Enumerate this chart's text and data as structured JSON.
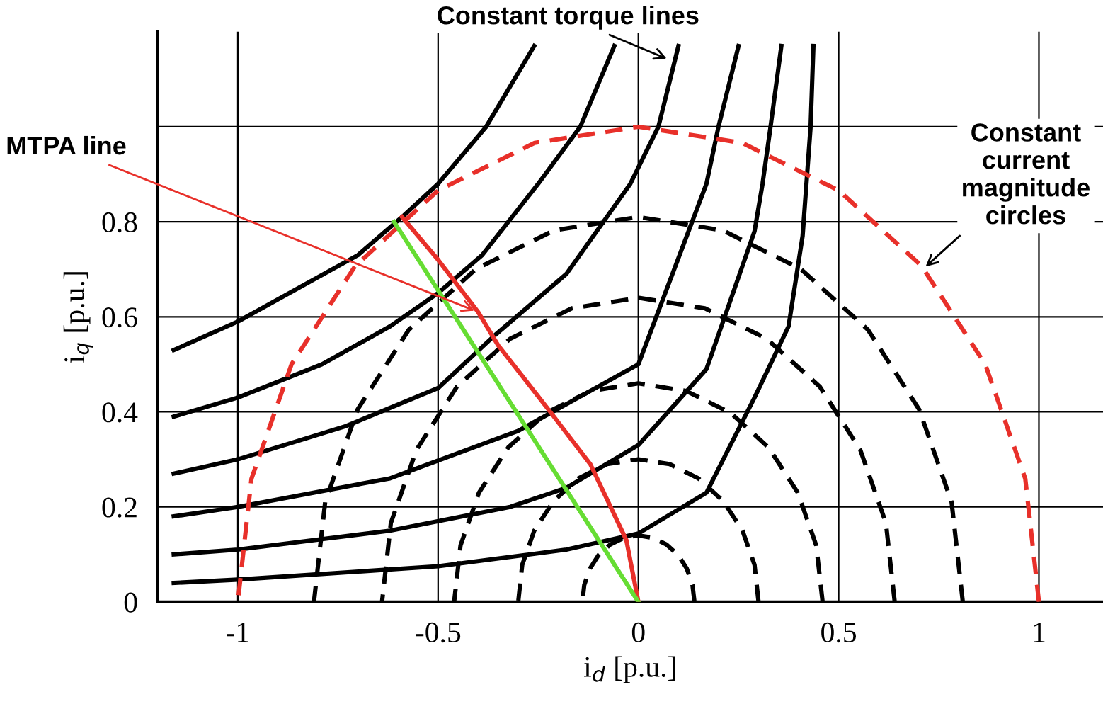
{
  "chart_data": {
    "type": "line",
    "xlabel": "i$_{d}$ [p.u.]",
    "ylabel": "i$_{q}$ [p.u.]",
    "xlim": [
      -1.2,
      1.16
    ],
    "ylim": [
      0,
      1.2
    ],
    "xticks": [
      -1,
      -0.5,
      0,
      0.5,
      1
    ],
    "yticks": [
      0,
      0.2,
      0.4,
      0.6,
      0.8,
      {
        "value": 1,
        "label": null
      }
    ],
    "grid": true,
    "marker": "none",
    "annotations": [
      {
        "text": "Constant torque lines",
        "x": 0.08,
        "y": 1.14
      },
      {
        "text": "MTPA line",
        "x": -0.4,
        "y": 0.61
      },
      {
        "text": "Constant current magnitude circles",
        "x": 0.71,
        "y": 0.7
      }
    ],
    "series": [
      {
        "color": "#000000",
        "line_style": "solid",
        "x": [
          -1.16,
          -1,
          -0.7,
          -0.59,
          -0.5,
          -0.38,
          -0.26
        ],
        "values": [
          0.53,
          0.59,
          0.73,
          0.81,
          0.88,
          1.0,
          1.17
        ]
      },
      {
        "color": "#000000",
        "line_style": "solid",
        "x": [
          -1.16,
          -1,
          -0.79,
          -0.62,
          -0.5,
          -0.39,
          -0.25,
          -0.145,
          -0.06
        ],
        "values": [
          0.39,
          0.43,
          0.5,
          0.58,
          0.65,
          0.73,
          0.88,
          1.0,
          1.17
        ]
      },
      {
        "color": "#000000",
        "line_style": "solid",
        "x": [
          -1.16,
          -1,
          -0.73,
          -0.5,
          -0.36,
          -0.18,
          -0.02,
          0.05,
          0.1
        ],
        "values": [
          0.27,
          0.3,
          0.37,
          0.45,
          0.56,
          0.69,
          0.88,
          1.0,
          1.17
        ]
      },
      {
        "color": "#000000",
        "line_style": "solid",
        "x": [
          -1.16,
          -1,
          -0.62,
          -0.3,
          0,
          0.17,
          0.2,
          0.25
        ],
        "values": [
          0.18,
          0.2,
          0.26,
          0.36,
          0.5,
          0.88,
          1.0,
          1.17
        ]
      },
      {
        "color": "#000000",
        "line_style": "solid",
        "x": [
          -1.16,
          -1,
          -0.62,
          -0.32,
          -0.18,
          0,
          0.17,
          0.29,
          0.31,
          0.33,
          0.357
        ],
        "values": [
          0.1,
          0.11,
          0.15,
          0.2,
          0.24,
          0.33,
          0.49,
          0.78,
          0.88,
          1.0,
          1.17
        ]
      },
      {
        "color": "#000000",
        "line_style": "solid",
        "x": [
          -1.16,
          -1,
          -0.5,
          -0.18,
          0,
          0.17,
          0.29,
          0.375,
          0.41,
          0.43,
          0.437
        ],
        "values": [
          0.04,
          0.047,
          0.075,
          0.11,
          0.144,
          0.23,
          0.43,
          0.58,
          0.77,
          1.0,
          1.17
        ]
      },
      {
        "color": "#000000",
        "line_style": "dashed",
        "x": [
          0.14,
          0.135,
          0.121,
          0.099,
          0.07,
          0.036,
          0,
          -0.036,
          -0.07,
          -0.099,
          -0.121,
          -0.135,
          -0.14
        ],
        "values": [
          0,
          0.036,
          0.07,
          0.099,
          0.121,
          0.135,
          0.14,
          0.135,
          0.121,
          0.099,
          0.07,
          0.036,
          0
        ]
      },
      {
        "color": "#000000",
        "line_style": "dashed",
        "x": [
          0.3,
          0.29,
          0.26,
          0.212,
          0.15,
          0.078,
          0,
          -0.078,
          -0.15,
          -0.212,
          -0.26,
          -0.29,
          -0.3
        ],
        "values": [
          0,
          0.078,
          0.15,
          0.212,
          0.26,
          0.29,
          0.3,
          0.29,
          0.26,
          0.212,
          0.15,
          0.078,
          0
        ]
      },
      {
        "color": "#000000",
        "line_style": "dashed",
        "x": [
          0.46,
          0.444,
          0.398,
          0.325,
          0.23,
          0.119,
          0,
          -0.119,
          -0.23,
          -0.325,
          -0.398,
          -0.444,
          -0.46
        ],
        "values": [
          0,
          0.119,
          0.23,
          0.325,
          0.398,
          0.444,
          0.46,
          0.444,
          0.398,
          0.325,
          0.23,
          0.119,
          0
        ]
      },
      {
        "color": "#000000",
        "line_style": "dashed",
        "x": [
          0.64,
          0.618,
          0.554,
          0.453,
          0.32,
          0.166,
          0,
          -0.166,
          -0.32,
          -0.453,
          -0.554,
          -0.618,
          -0.64
        ],
        "values": [
          0,
          0.166,
          0.32,
          0.453,
          0.554,
          0.618,
          0.64,
          0.618,
          0.554,
          0.453,
          0.32,
          0.166,
          0
        ]
      },
      {
        "color": "#000000",
        "line_style": "dashed",
        "x": [
          0.81,
          0.782,
          0.701,
          0.573,
          0.405,
          0.21,
          0,
          -0.21,
          -0.405,
          -0.573,
          -0.701,
          -0.782,
          -0.81
        ],
        "values": [
          0,
          0.21,
          0.405,
          0.573,
          0.701,
          0.782,
          0.81,
          0.782,
          0.701,
          0.573,
          0.405,
          0.21,
          0
        ]
      },
      {
        "color": "#e8302a",
        "line_style": "dashed",
        "x": [
          1,
          0.966,
          0.866,
          0.707,
          0.5,
          0.259,
          0,
          -0.259,
          -0.5,
          -0.707,
          -0.866,
          -0.966,
          -1
        ],
        "values": [
          0,
          0.259,
          0.5,
          0.707,
          0.866,
          0.966,
          1,
          0.966,
          0.866,
          0.707,
          0.5,
          0.259,
          0
        ]
      },
      {
        "color": "#e8302a",
        "line_style": "solid",
        "x": [
          0,
          -0.03,
          -0.12,
          -0.22,
          -0.35,
          -0.4,
          -0.5,
          -0.59
        ],
        "values": [
          0,
          0.13,
          0.29,
          0.4,
          0.54,
          0.61,
          0.72,
          0.81
        ]
      },
      {
        "color": "#66dd33",
        "line_style": "solid",
        "x": [
          0,
          -0.61
        ],
        "values": [
          0,
          0.8
        ]
      }
    ]
  }
}
